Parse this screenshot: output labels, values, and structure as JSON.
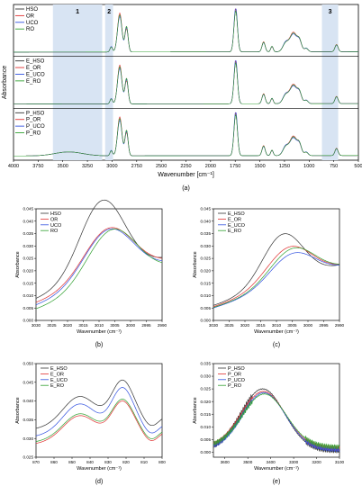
{
  "chart_data": [
    {
      "id": "a",
      "type": "line",
      "panel_label": "(a)",
      "xlabel": "Wavenumber [cm⁻¹]",
      "ylabel": "Absorbance",
      "xlim": [
        4000,
        500
      ],
      "x_ticks": [
        4000,
        3750,
        3500,
        3250,
        3000,
        2750,
        2500,
        2250,
        2000,
        1750,
        1500,
        1250,
        1000,
        750,
        500
      ],
      "regions": [
        {
          "label": "1",
          "from": 3600,
          "to": 3100
        },
        {
          "label": "2",
          "from": 3070,
          "to": 2990
        },
        {
          "label": "3",
          "from": 870,
          "to": 705
        }
      ],
      "subplots": [
        {
          "legend": [
            "HSO",
            "OR",
            "UCO",
            "RO"
          ],
          "oh_band": 0.0
        },
        {
          "legend": [
            "E_HSO",
            "E_OR",
            "E_UCO",
            "E_RO"
          ],
          "oh_band": 0.0
        },
        {
          "legend": [
            "P_HSO",
            "P_OR",
            "P_UCO",
            "P_RO"
          ],
          "oh_band": 0.09
        }
      ],
      "peaks": [
        {
          "x": 3008,
          "h": 0.12,
          "w": 8
        },
        {
          "x": 2922,
          "h": 0.85,
          "w": 14
        },
        {
          "x": 2853,
          "h": 0.55,
          "w": 10
        },
        {
          "x": 1745,
          "h": 0.98,
          "w": 11
        },
        {
          "x": 1462,
          "h": 0.22,
          "w": 10
        },
        {
          "x": 1377,
          "h": 0.12,
          "w": 8
        },
        {
          "x": 1238,
          "h": 0.2,
          "w": 18
        },
        {
          "x": 1160,
          "h": 0.42,
          "w": 22
        },
        {
          "x": 1098,
          "h": 0.22,
          "w": 14
        },
        {
          "x": 1030,
          "h": 0.08,
          "w": 12
        },
        {
          "x": 722,
          "h": 0.16,
          "w": 10
        }
      ]
    },
    {
      "id": "b",
      "type": "line",
      "panel_label": "(b)",
      "xlabel": "Wavenumber (cm⁻¹)",
      "ylabel": "Absorbance",
      "xlim": [
        3030,
        2990
      ],
      "ylim": [
        0.0,
        0.045
      ],
      "x_ticks": [
        3030,
        3025,
        3020,
        3015,
        3010,
        3005,
        3000,
        2995,
        2990
      ],
      "y_ticks": [
        "0.000",
        "0.005",
        "0.010",
        "0.015",
        "0.020",
        "0.025",
        "0.030",
        "0.035",
        "0.040",
        "0.045"
      ],
      "series": [
        {
          "name": "HSO",
          "color": "#333333",
          "center": 3009,
          "peak": 0.04,
          "base": 0.0085,
          "width": 10
        },
        {
          "name": "OR",
          "color": "#e03030",
          "center": 3007,
          "peak": 0.028,
          "base": 0.007,
          "width": 11
        },
        {
          "name": "UCO",
          "color": "#3050e0",
          "center": 3007,
          "peak": 0.0275,
          "base": 0.006,
          "width": 11
        },
        {
          "name": "RO",
          "color": "#30a030",
          "center": 3006,
          "peak": 0.027,
          "base": 0.0045,
          "width": 11
        }
      ]
    },
    {
      "id": "c",
      "type": "line",
      "panel_label": "(c)",
      "xlabel": "Wavenumber (cm⁻¹)",
      "ylabel": "Absorbance",
      "xlim": [
        3030,
        2990
      ],
      "ylim": [
        0.0,
        0.045
      ],
      "x_ticks": [
        3030,
        3025,
        3020,
        3015,
        3010,
        3005,
        3000,
        2995,
        2990
      ],
      "y_ticks": [
        "0.000",
        "0.005",
        "0.010",
        "0.015",
        "0.020",
        "0.025",
        "0.030",
        "0.035",
        "0.040",
        "0.045"
      ],
      "series": [
        {
          "name": "E_HSO",
          "color": "#333333",
          "center": 3008,
          "peak": 0.026,
          "base": 0.006,
          "width": 9
        },
        {
          "name": "E_OR",
          "color": "#e03030",
          "center": 3006,
          "peak": 0.02,
          "base": 0.0055,
          "width": 10
        },
        {
          "name": "E_UCO",
          "color": "#3050e0",
          "center": 3005,
          "peak": 0.017,
          "base": 0.005,
          "width": 10
        },
        {
          "name": "E_RO",
          "color": "#30a030",
          "center": 3005,
          "peak": 0.019,
          "base": 0.0052,
          "width": 10
        }
      ]
    },
    {
      "id": "d",
      "type": "line",
      "panel_label": "(d)",
      "xlabel": "Wavenumber (cm⁻¹)",
      "ylabel": "Absorbance",
      "xlim": [
        870,
        800
      ],
      "ylim": [
        0.025,
        0.05
      ],
      "x_ticks": [
        870,
        860,
        850,
        840,
        830,
        820,
        810,
        800
      ],
      "y_ticks": [
        "0.025",
        "0.030",
        "0.035",
        "0.040",
        "0.045",
        "0.050"
      ],
      "series": [
        {
          "name": "E_HSO",
          "color": "#333333",
          "offset": 0.0325,
          "bump": 1.0
        },
        {
          "name": "E_OR",
          "color": "#e03030",
          "offset": 0.0285,
          "bump": 0.85
        },
        {
          "name": "E_UCO",
          "color": "#3050e0",
          "offset": 0.0305,
          "bump": 1.0
        },
        {
          "name": "E_RO",
          "color": "#30a030",
          "offset": 0.029,
          "bump": 0.85
        }
      ]
    },
    {
      "id": "e",
      "type": "line",
      "panel_label": "(e)",
      "xlabel": "Wavenumber (cm⁻¹)",
      "ylabel": "Absorbance",
      "xlim": [
        3650,
        3100
      ],
      "ylim": [
        -0.002,
        0.035
      ],
      "x_ticks": [
        3600,
        3500,
        3400,
        3300,
        3200,
        3100
      ],
      "y_ticks": [
        "0.000",
        "0.005",
        "0.010",
        "0.015",
        "0.020",
        "0.025",
        "0.030",
        "0.035"
      ],
      "series": [
        {
          "name": "P_HSO",
          "color": "#333333",
          "center": 3435,
          "peak": 0.025,
          "width": 95,
          "tail": 0.0005
        },
        {
          "name": "P_OR",
          "color": "#e03030",
          "center": 3432,
          "peak": 0.024,
          "width": 95,
          "tail": 0.0015
        },
        {
          "name": "P_UCO",
          "color": "#3050e0",
          "center": 3430,
          "peak": 0.0235,
          "width": 95,
          "tail": 0.001
        },
        {
          "name": "P_RO",
          "color": "#30a030",
          "center": 3428,
          "peak": 0.023,
          "width": 95,
          "tail": 0.002
        }
      ]
    }
  ],
  "series_colors": [
    "#333333",
    "#e03030",
    "#3050e0",
    "#30a030"
  ]
}
